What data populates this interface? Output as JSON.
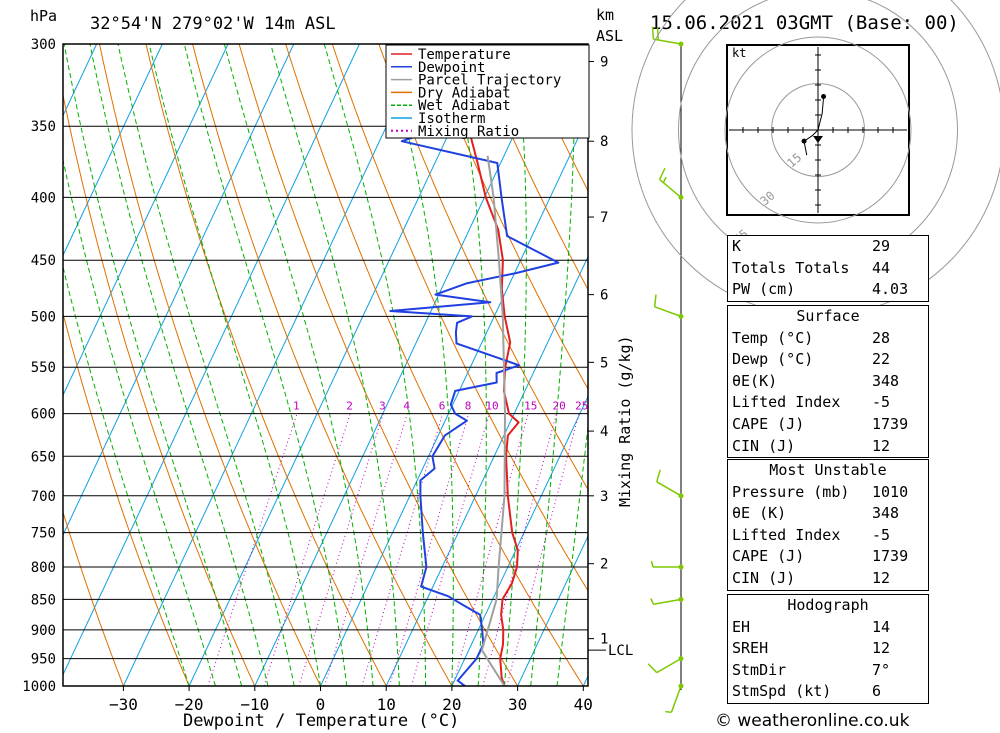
{
  "header": {
    "location": "32°54'N 279°02'W 14m ASL",
    "datetime": "15.06.2021 03GMT (Base: 00)",
    "pressure_unit": "hPa",
    "km_unit": "km",
    "asl_label": "ASL"
  },
  "credit": "© weatheronline.co.uk",
  "chart_data": {
    "type": "line",
    "chart_kind": "skew-T log-P diagram",
    "xlabel": "Dewpoint / Temperature (°C)",
    "ylabel": "hPa",
    "right_axis_label": "Mixing Ratio (g/kg)",
    "x_ticks": [
      -30,
      -20,
      -10,
      0,
      10,
      20,
      30,
      40
    ],
    "pressure_levels": [
      300,
      350,
      400,
      450,
      500,
      550,
      600,
      650,
      700,
      750,
      800,
      850,
      900,
      950,
      1000
    ],
    "y_scale": "log",
    "km_ticks": [
      {
        "km": "1",
        "p": 915
      },
      {
        "km": "2",
        "p": 795
      },
      {
        "km": "3",
        "p": 700
      },
      {
        "km": "4",
        "p": 620
      },
      {
        "km": "5",
        "p": 545
      },
      {
        "km": "6",
        "p": 480
      },
      {
        "km": "7",
        "p": 415
      },
      {
        "km": "8",
        "p": 360
      },
      {
        "km": "9",
        "p": 310
      }
    ],
    "lcl": {
      "label": "LCL",
      "p": 935
    },
    "mixing_ratio_labels": [
      "1",
      "2",
      "3",
      "4",
      "6",
      "8",
      "10",
      "15",
      "20",
      "25"
    ],
    "legend": [
      {
        "name": "Temperature",
        "color": "#e02020"
      },
      {
        "name": "Dewpoint",
        "color": "#2040e0"
      },
      {
        "name": "Parcel Trajectory",
        "color": "#a0a0a0"
      },
      {
        "name": "Dry Adiabat",
        "color": "#e07000"
      },
      {
        "name": "Wet Adiabat",
        "color": "#00b000"
      },
      {
        "name": "Isotherm",
        "color": "#10a0e0"
      },
      {
        "name": "Mixing Ratio",
        "color": "#c000c0"
      }
    ],
    "series": [
      {
        "name": "Temperature",
        "points": [
          [
            1000,
            28
          ],
          [
            985,
            27
          ],
          [
            950,
            25.4
          ],
          [
            925,
            24.8
          ],
          [
            900,
            23.8
          ],
          [
            875,
            22.4
          ],
          [
            850,
            21.5
          ],
          [
            825,
            21.8
          ],
          [
            800,
            21.4
          ],
          [
            775,
            20.3
          ],
          [
            750,
            18.2
          ],
          [
            700,
            14.9
          ],
          [
            675,
            13.4
          ],
          [
            650,
            11.8
          ],
          [
            625,
            10.6
          ],
          [
            610,
            11.3
          ],
          [
            600,
            9.2
          ],
          [
            575,
            6.8
          ],
          [
            550,
            5.3
          ],
          [
            525,
            4.3
          ],
          [
            500,
            1.6
          ],
          [
            475,
            -0.8
          ],
          [
            450,
            -2.7
          ],
          [
            425,
            -5.6
          ],
          [
            400,
            -9.8
          ],
          [
            375,
            -13.5
          ],
          [
            350,
            -17.6
          ],
          [
            325,
            -22.4
          ],
          [
            300,
            -26.1
          ]
        ]
      },
      {
        "name": "Dewpoint",
        "points": [
          [
            1000,
            22
          ],
          [
            990,
            20.5
          ],
          [
            950,
            21.8
          ],
          [
            925,
            21.8
          ],
          [
            900,
            20.6
          ],
          [
            875,
            19.2
          ],
          [
            860,
            16.1
          ],
          [
            845,
            13
          ],
          [
            830,
            8.2
          ],
          [
            800,
            7.6
          ],
          [
            750,
            4.6
          ],
          [
            700,
            1.6
          ],
          [
            680,
            0.5
          ],
          [
            665,
            1.8
          ],
          [
            650,
            0.6
          ],
          [
            625,
            1
          ],
          [
            608,
            3.3
          ],
          [
            600,
            1
          ],
          [
            590,
            -0.3
          ],
          [
            575,
            -0.6
          ],
          [
            566,
            5.1
          ],
          [
            556,
            4.4
          ],
          [
            548,
            7.3
          ],
          [
            526,
            -3.8
          ],
          [
            515,
            -4.7
          ],
          [
            506,
            -5.2
          ],
          [
            500,
            -3.4
          ],
          [
            495,
            -16.2
          ],
          [
            487,
            -1.6
          ],
          [
            480,
            -10.5
          ],
          [
            470,
            -6.6
          ],
          [
            461,
            0.2
          ],
          [
            452,
            5.9
          ],
          [
            430,
            -3.8
          ],
          [
            400,
            -7.4
          ],
          [
            375,
            -10.5
          ],
          [
            360,
            -26.6
          ],
          [
            340,
            -14.7
          ],
          [
            325,
            -10.6
          ],
          [
            310,
            -9.5
          ],
          [
            295,
            -12.1
          ]
        ]
      },
      {
        "name": "Parcel Trajectory",
        "points": [
          [
            1000,
            28
          ],
          [
            935,
            22
          ],
          [
            850,
            20.6
          ],
          [
            800,
            18.6
          ],
          [
            700,
            14.4
          ],
          [
            600,
            8.6
          ],
          [
            500,
            1.3
          ],
          [
            450,
            -3.3
          ],
          [
            400,
            -8.6
          ],
          [
            370,
            -12.5
          ]
        ]
      }
    ],
    "wind_barbs": [
      {
        "p": 1000,
        "dir_deg": 200,
        "speed_kt": 5
      },
      {
        "p": 950,
        "dir_deg": 240,
        "speed_kt": 10
      },
      {
        "p": 850,
        "dir_deg": 260,
        "speed_kt": 5
      },
      {
        "p": 800,
        "dir_deg": 270,
        "speed_kt": 5
      },
      {
        "p": 700,
        "dir_deg": 300,
        "speed_kt": 10
      },
      {
        "p": 500,
        "dir_deg": 290,
        "speed_kt": 10
      },
      {
        "p": 400,
        "dir_deg": 310,
        "speed_kt": 15
      },
      {
        "p": 300,
        "dir_deg": 280,
        "speed_kt": 20
      }
    ],
    "hodograph": {
      "unit_label": "kt",
      "ring_labels": [
        "15",
        "30",
        "45"
      ],
      "points": [
        [
          2,
          12
        ],
        [
          1.5,
          6
        ],
        [
          0,
          0
        ],
        [
          -2,
          -2
        ],
        [
          -5,
          -4
        ],
        [
          -4,
          -9
        ]
      ]
    }
  },
  "indices": [
    {
      "label": "K",
      "value": "29"
    },
    {
      "label": "Totals Totals",
      "value": "44"
    },
    {
      "label": "PW (cm)",
      "value": "4.03"
    }
  ],
  "surface": {
    "title": "Surface",
    "rows": [
      {
        "label": "Temp (°C)",
        "value": "28"
      },
      {
        "label": "Dewp (°C)",
        "value": "22"
      },
      {
        "label": "θE(K)",
        "value": "348"
      },
      {
        "label": "Lifted Index",
        "value": "-5"
      },
      {
        "label": "CAPE (J)",
        "value": "1739"
      },
      {
        "label": "CIN (J)",
        "value": "12"
      }
    ]
  },
  "most_unstable": {
    "title": "Most Unstable",
    "rows": [
      {
        "label": "Pressure (mb)",
        "value": "1010"
      },
      {
        "label": "θE (K)",
        "value": "348"
      },
      {
        "label": "Lifted Index",
        "value": "-5"
      },
      {
        "label": "CAPE (J)",
        "value": "1739"
      },
      {
        "label": "CIN (J)",
        "value": "12"
      }
    ]
  },
  "hodograph_table": {
    "title": "Hodograph",
    "rows": [
      {
        "label": "EH",
        "value": "14"
      },
      {
        "label": "SREH",
        "value": "12"
      },
      {
        "label": "StmDir",
        "value": "7°"
      },
      {
        "label": "StmSpd (kt)",
        "value": "6"
      }
    ]
  }
}
